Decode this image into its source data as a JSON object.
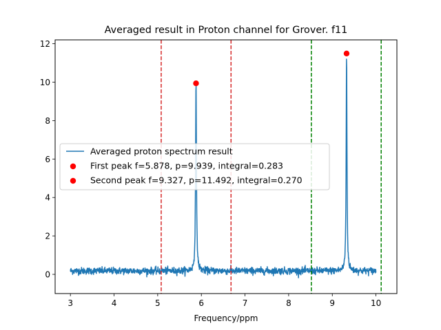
{
  "chart_data": {
    "type": "line",
    "title": "Averaged result in Proton channel for Grover. f11",
    "xlabel": "Frequency/ppm",
    "ylabel": "",
    "xlim": [
      2.65,
      10.48
    ],
    "ylim": [
      -1.0,
      12.2
    ],
    "xticks": [
      3,
      4,
      5,
      6,
      7,
      8,
      9,
      10
    ],
    "yticks": [
      0,
      2,
      4,
      6,
      8,
      10,
      12
    ],
    "x_range": [
      3.0,
      10.0
    ],
    "baseline_level": 0.18,
    "series": [
      {
        "name": "Averaged proton spectrum result",
        "color": "#1f77b4",
        "peaks": [
          {
            "center": 5.878,
            "height": 9.939,
            "width": 0.012
          },
          {
            "center": 9.327,
            "height": 11.492,
            "width": 0.011
          }
        ]
      }
    ],
    "points": [
      {
        "name": "First peak f=5.878, p=9.939, integral=0.283",
        "x": 5.878,
        "y": 9.939,
        "color": "#ff0000"
      },
      {
        "name": "Second peak f=9.327, p=11.492, integral=0.270",
        "x": 9.327,
        "y": 11.492,
        "color": "#ff0000"
      }
    ],
    "vlines": [
      {
        "x": 5.08,
        "color": "#d62728"
      },
      {
        "x": 6.68,
        "color": "#d62728"
      },
      {
        "x": 8.52,
        "color": "#008000"
      },
      {
        "x": 10.12,
        "color": "#008000"
      }
    ],
    "legend_position": "center-left"
  }
}
